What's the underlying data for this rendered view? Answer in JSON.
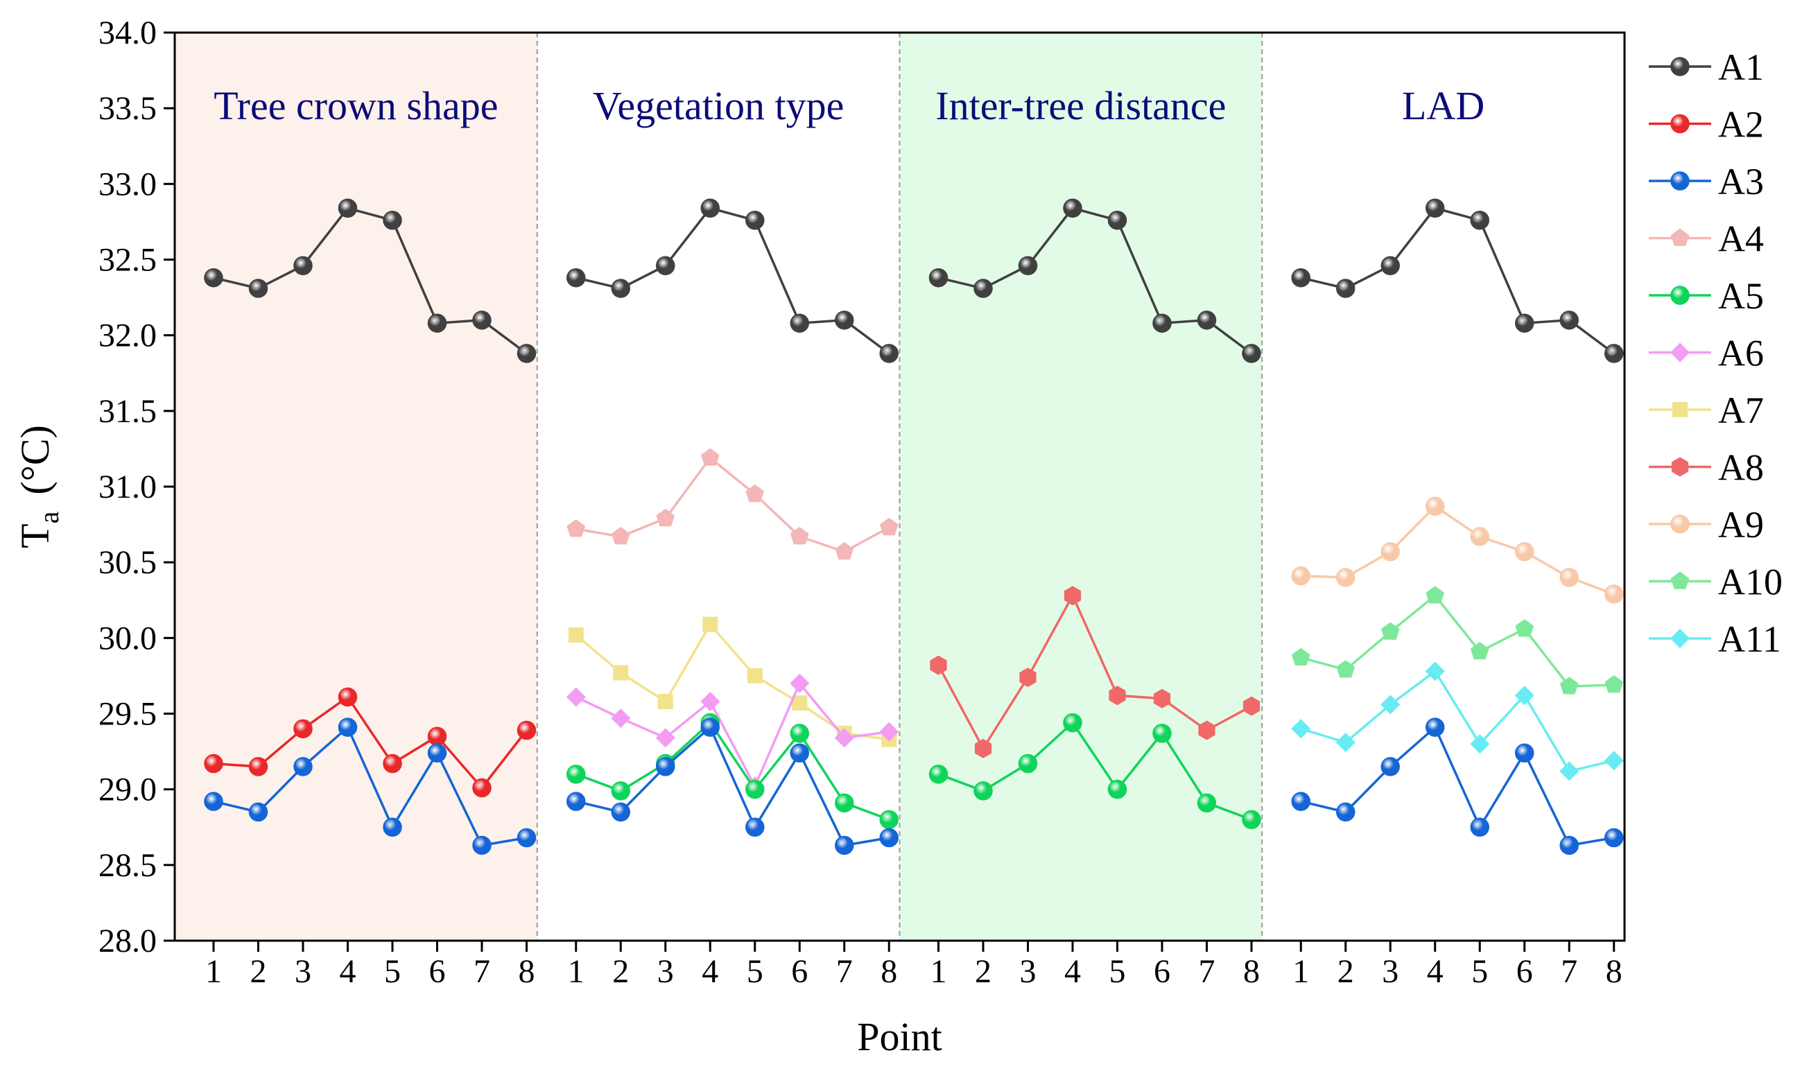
{
  "chart_data": {
    "type": "line",
    "xlabel": "Point",
    "ylabel": "T",
    "ylabel_subscript": "a",
    "ylabel_unit": "(°C)",
    "ylim": [
      28.0,
      34.0
    ],
    "y_ticks": [
      "28.0",
      "28.5",
      "29.0",
      "29.5",
      "30.0",
      "30.5",
      "31.0",
      "31.5",
      "32.0",
      "32.5",
      "33.0",
      "33.5",
      "34.0"
    ],
    "x_ticks": [
      "1",
      "2",
      "3",
      "4",
      "5",
      "6",
      "7",
      "8"
    ],
    "grid": false,
    "legend_position": "right",
    "panels": [
      {
        "title": "Tree crown shape",
        "background": "#fdf1ec",
        "series": [
          {
            "name": "A1",
            "color": "#404040",
            "marker": "circle",
            "values": [
              32.38,
              32.31,
              32.46,
              32.84,
              32.76,
              32.08,
              32.1,
              31.88
            ]
          },
          {
            "name": "A2",
            "color": "#e8282b",
            "marker": "circle",
            "values": [
              29.17,
              29.15,
              29.4,
              29.61,
              29.17,
              29.35,
              29.01,
              29.39
            ]
          },
          {
            "name": "A3",
            "color": "#1565d6",
            "marker": "circle",
            "values": [
              28.92,
              28.85,
              29.15,
              29.41,
              28.75,
              29.24,
              28.63,
              28.68
            ]
          }
        ]
      },
      {
        "title": "Vegetation type",
        "background": "#ffffff",
        "series": [
          {
            "name": "A1",
            "color": "#404040",
            "marker": "circle",
            "values": [
              32.38,
              32.31,
              32.46,
              32.84,
              32.76,
              32.08,
              32.1,
              31.88
            ]
          },
          {
            "name": "A4",
            "color": "#f4b6b6",
            "marker": "pentagon",
            "values": [
              30.72,
              30.67,
              30.79,
              31.19,
              30.95,
              30.67,
              30.57,
              30.73
            ]
          },
          {
            "name": "A7",
            "color": "#f2e28c",
            "marker": "square",
            "values": [
              30.02,
              29.77,
              29.58,
              30.09,
              29.75,
              29.57,
              29.37,
              29.33
            ]
          },
          {
            "name": "A6",
            "color": "#f29cf2",
            "marker": "diamond",
            "values": [
              29.61,
              29.47,
              29.34,
              29.58,
              29.02,
              29.7,
              29.34,
              29.38
            ]
          },
          {
            "name": "A5",
            "color": "#0fd45a",
            "marker": "circle",
            "values": [
              29.1,
              28.99,
              29.17,
              29.44,
              29.0,
              29.37,
              28.91,
              28.8
            ]
          },
          {
            "name": "A3",
            "color": "#1565d6",
            "marker": "circle",
            "values": [
              28.92,
              28.85,
              29.15,
              29.41,
              28.75,
              29.24,
              28.63,
              28.68
            ]
          }
        ]
      },
      {
        "title": "Inter-tree distance",
        "background": "#e2fbe7",
        "series": [
          {
            "name": "A1",
            "color": "#404040",
            "marker": "circle",
            "values": [
              32.38,
              32.31,
              32.46,
              32.84,
              32.76,
              32.08,
              32.1,
              31.88
            ]
          },
          {
            "name": "A8",
            "color": "#f06868",
            "marker": "hexagon",
            "values": [
              29.82,
              29.27,
              29.74,
              30.28,
              29.62,
              29.6,
              29.39,
              29.55
            ]
          },
          {
            "name": "A5",
            "color": "#0fd45a",
            "marker": "circle",
            "values": [
              29.1,
              28.99,
              29.17,
              29.44,
              29.0,
              29.37,
              28.91,
              28.8
            ]
          }
        ]
      },
      {
        "title": "LAD",
        "background": "#ffffff",
        "series": [
          {
            "name": "A1",
            "color": "#404040",
            "marker": "circle",
            "values": [
              32.38,
              32.31,
              32.46,
              32.84,
              32.76,
              32.08,
              32.1,
              31.88
            ]
          },
          {
            "name": "A9",
            "color": "#f8c9a8",
            "marker": "circle",
            "values": [
              30.41,
              30.4,
              30.57,
              30.87,
              30.67,
              30.57,
              30.4,
              30.29
            ]
          },
          {
            "name": "A10",
            "color": "#7ee89a",
            "marker": "pentagon",
            "values": [
              29.87,
              29.79,
              30.04,
              30.28,
              29.91,
              30.06,
              29.68,
              29.69
            ]
          },
          {
            "name": "A11",
            "color": "#66ecf2",
            "marker": "diamond",
            "values": [
              29.4,
              29.31,
              29.56,
              29.78,
              29.3,
              29.62,
              29.12,
              29.19
            ]
          },
          {
            "name": "A3",
            "color": "#1565d6",
            "marker": "circle",
            "values": [
              28.92,
              28.85,
              29.15,
              29.41,
              28.75,
              29.24,
              28.63,
              28.68
            ]
          }
        ]
      }
    ],
    "legend": [
      {
        "name": "A1",
        "color": "#404040",
        "marker": "circle"
      },
      {
        "name": "A2",
        "color": "#e8282b",
        "marker": "circle"
      },
      {
        "name": "A3",
        "color": "#1565d6",
        "marker": "circle"
      },
      {
        "name": "A4",
        "color": "#f4b6b6",
        "marker": "pentagon"
      },
      {
        "name": "A5",
        "color": "#0fd45a",
        "marker": "circle"
      },
      {
        "name": "A6",
        "color": "#f29cf2",
        "marker": "diamond"
      },
      {
        "name": "A7",
        "color": "#f2e28c",
        "marker": "square"
      },
      {
        "name": "A8",
        "color": "#f06868",
        "marker": "hexagon"
      },
      {
        "name": "A9",
        "color": "#f8c9a8",
        "marker": "circle"
      },
      {
        "name": "A10",
        "color": "#7ee89a",
        "marker": "pentagon"
      },
      {
        "name": "A11",
        "color": "#66ecf2",
        "marker": "diamond"
      }
    ]
  }
}
